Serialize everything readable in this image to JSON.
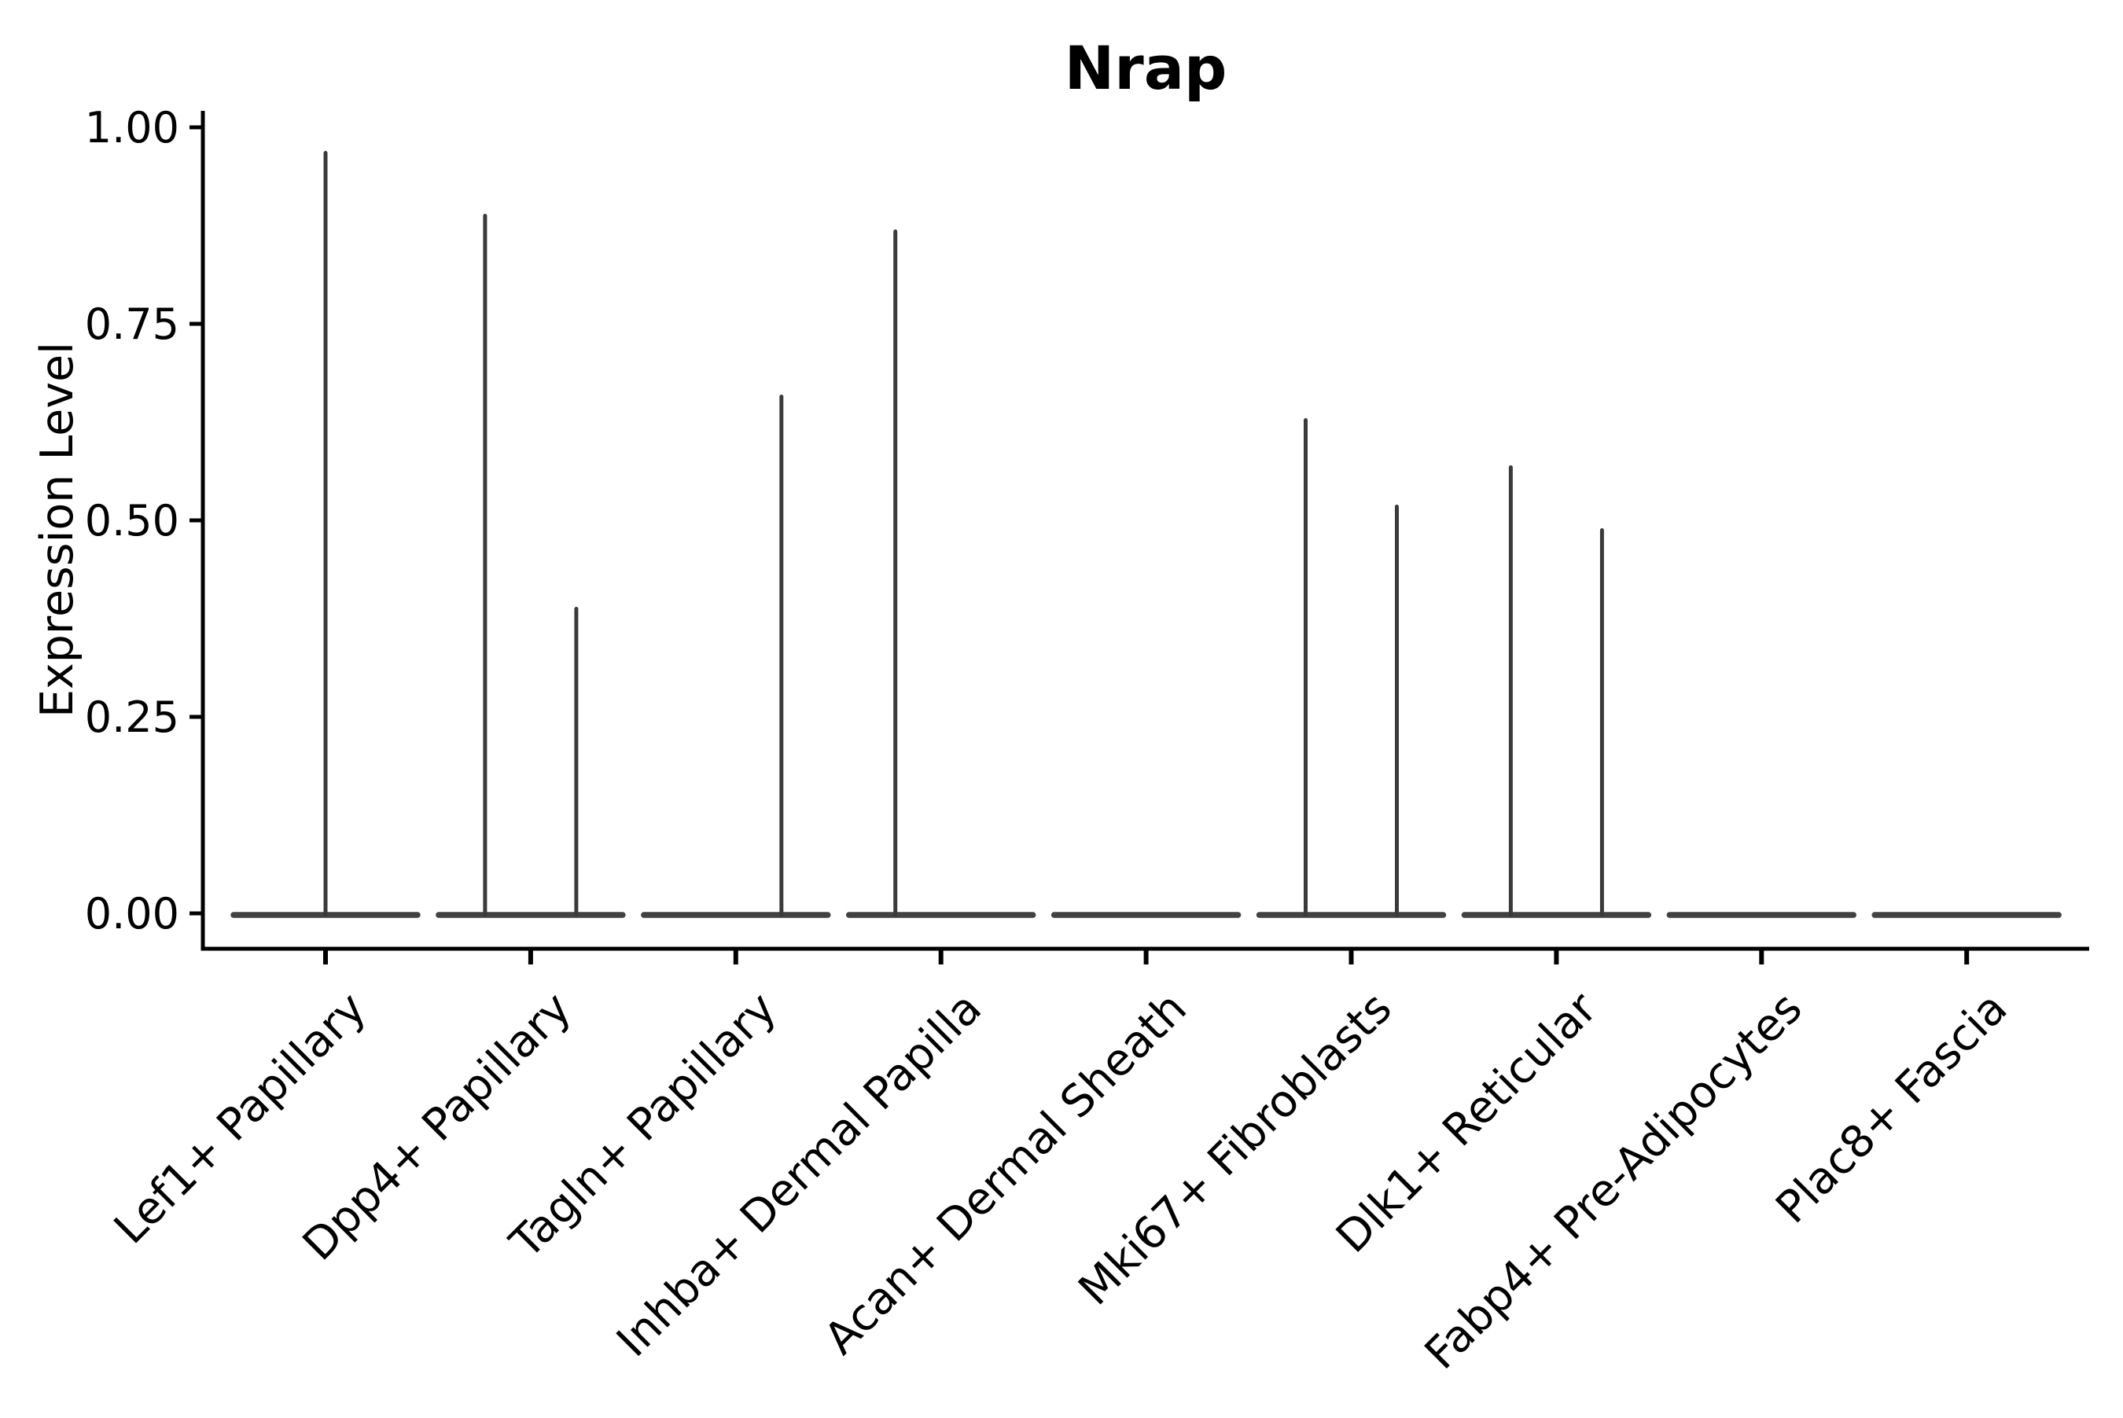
{
  "chart_data": {
    "type": "violin",
    "title": "Nrap",
    "ylabel": "Expression Level",
    "xlabel": "",
    "ylim": [
      0.0,
      1.0
    ],
    "y_ticks": [
      "0.00",
      "0.25",
      "0.50",
      "0.75",
      "1.00"
    ],
    "y_tick_values": [
      0.0,
      0.25,
      0.5,
      0.75,
      1.0
    ],
    "grid": "off",
    "legend": "none",
    "x_tick_angle": 45,
    "axis_color": "#000000",
    "violin_color": "#3a3a3a",
    "background_color": "#ffffff",
    "categories": [
      "Lef1+ Papillary",
      "Dpp4+ Papillary",
      "Tagln+ Papillary",
      "Inhba+ Dermal Papilla",
      "Acan+ Dermal Sheath",
      "Mki67+ Fibroblasts",
      "Dlk1+ Reticular",
      "Fabp4+ Pre-Adipocytes",
      "Plac8+ Fascia"
    ],
    "series": [
      {
        "name": "Lef1+ Papillary",
        "base_at_zero": true,
        "spikes": [
          {
            "offset": 0,
            "value": 0.97
          }
        ]
      },
      {
        "name": "Dpp4+ Papillary",
        "base_at_zero": true,
        "spikes": [
          {
            "offset": -58,
            "value": 0.89
          },
          {
            "offset": 58,
            "value": 0.39
          }
        ]
      },
      {
        "name": "Tagln+ Papillary",
        "base_at_zero": true,
        "spikes": [
          {
            "offset": 58,
            "value": 0.66
          }
        ]
      },
      {
        "name": "Inhba+ Dermal Papilla",
        "base_at_zero": true,
        "spikes": [
          {
            "offset": -58,
            "value": 0.87
          }
        ]
      },
      {
        "name": "Acan+ Dermal Sheath",
        "base_at_zero": true,
        "spikes": []
      },
      {
        "name": "Mki67+ Fibroblasts",
        "base_at_zero": true,
        "spikes": [
          {
            "offset": -58,
            "value": 0.63
          },
          {
            "offset": 58,
            "value": 0.52
          }
        ]
      },
      {
        "name": "Dlk1+ Reticular",
        "base_at_zero": true,
        "spikes": [
          {
            "offset": -58,
            "value": 0.57
          },
          {
            "offset": 58,
            "value": 0.49
          }
        ]
      },
      {
        "name": "Fabp4+ Pre-Adipocytes",
        "base_at_zero": true,
        "spikes": []
      },
      {
        "name": "Plac8+ Fascia",
        "base_at_zero": true,
        "spikes": []
      }
    ]
  }
}
